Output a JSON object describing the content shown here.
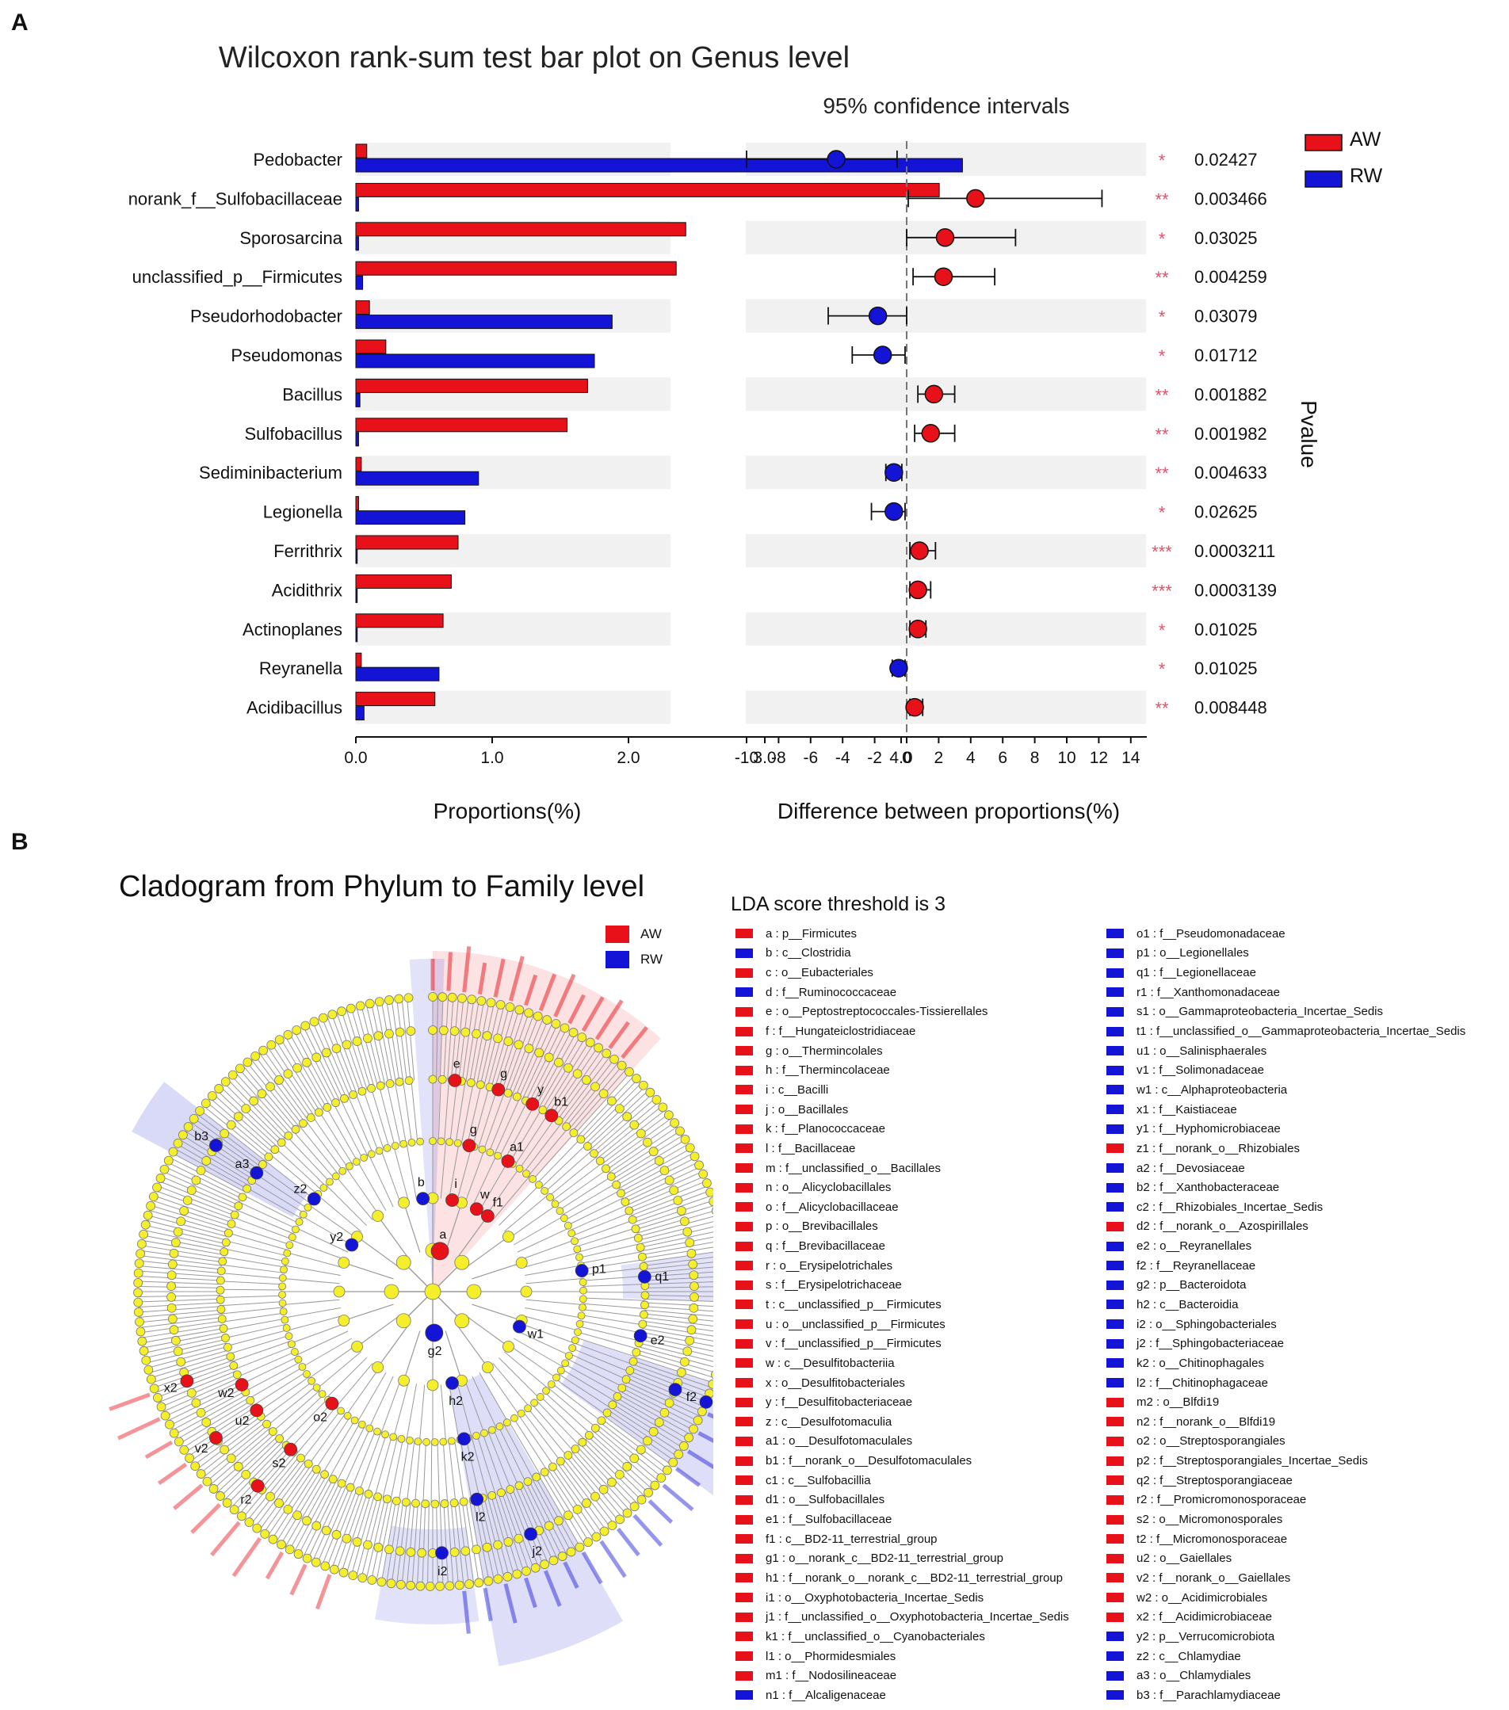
{
  "figure": {
    "panel_a_label": "A",
    "panel_b_label": "B"
  },
  "colors": {
    "AW": "#e8111a",
    "RW": "#1414d6",
    "node": "#f5ef2b",
    "band": "#f1f1f1"
  },
  "chart_data": [
    {
      "type": "bar",
      "orientation": "horizontal",
      "title": "Wilcoxon rank-sum test bar plot on Genus level",
      "xlabel": "Proportions(%)",
      "xlim": [
        0,
        4.5
      ],
      "xticks": [
        0.0,
        1.0,
        2.0,
        3.0,
        4.0
      ],
      "xtick_labels": [
        "0.0",
        "1.0",
        "2.0",
        "3.0",
        "4.0"
      ],
      "categories": [
        "Pedobacter",
        "norank_f__Sulfobacillaceae",
        "Sporosarcina",
        "unclassified_p__Firmicutes",
        "Pseudorhodobacter",
        "Pseudomonas",
        "Bacillus",
        "Sulfobacillus",
        "Sediminibacterium",
        "Legionella",
        "Ferrithrix",
        "Acidithrix",
        "Actinoplanes",
        "Reyranella",
        "Acidibacillus"
      ],
      "series": [
        {
          "name": "AW",
          "values": [
            0.08,
            4.28,
            2.42,
            2.35,
            0.1,
            0.22,
            1.7,
            1.55,
            0.04,
            0.02,
            0.75,
            0.7,
            0.64,
            0.04,
            0.58
          ]
        },
        {
          "name": "RW",
          "values": [
            4.45,
            0.02,
            0.02,
            0.05,
            1.88,
            1.75,
            0.03,
            0.02,
            0.9,
            0.8,
            0.01,
            0.01,
            0.01,
            0.61,
            0.06
          ]
        }
      ],
      "legend": [
        {
          "label": "AW",
          "color": "#e8111a"
        },
        {
          "label": "RW",
          "color": "#1414d6"
        }
      ]
    },
    {
      "type": "errorbar",
      "title": "95% confidence intervals",
      "xlabel": "Difference between proportions(%)",
      "side_label": "Pvalue",
      "xlim": [
        -10,
        15
      ],
      "xticks": [
        -10,
        -8,
        -6,
        -4,
        -2,
        0,
        2,
        4,
        6,
        8,
        10,
        12,
        14
      ],
      "xtick_labels": [
        "-10",
        "-8",
        "-6",
        "-4",
        "-2",
        "0",
        "2",
        "4",
        "6",
        "8",
        "10",
        "12",
        "14"
      ],
      "categories": [
        "Pedobacter",
        "norank_f__Sulfobacillaceae",
        "Sporosarcina",
        "unclassified_p__Firmicutes",
        "Pseudorhodobacter",
        "Pseudomonas",
        "Bacillus",
        "Sulfobacillus",
        "Sediminibacterium",
        "Legionella",
        "Ferrithrix",
        "Acidithrix",
        "Actinoplanes",
        "Reyranella",
        "Acidibacillus"
      ],
      "diff": [
        -4.4,
        4.3,
        2.4,
        2.3,
        -1.8,
        -1.5,
        1.7,
        1.5,
        -0.8,
        -0.8,
        0.8,
        0.7,
        0.7,
        -0.5,
        0.5
      ],
      "ci_low": [
        -10.0,
        0.1,
        0.0,
        0.4,
        -4.9,
        -3.4,
        0.7,
        0.5,
        -1.3,
        -2.2,
        0.2,
        0.2,
        0.2,
        -0.9,
        0.2
      ],
      "ci_high": [
        -0.6,
        12.2,
        6.8,
        5.5,
        0.0,
        -0.1,
        3.0,
        3.0,
        -0.3,
        -0.1,
        1.8,
        1.5,
        1.2,
        -0.1,
        1.0
      ],
      "group": [
        "RW",
        "AW",
        "AW",
        "AW",
        "RW",
        "RW",
        "AW",
        "AW",
        "RW",
        "RW",
        "AW",
        "AW",
        "AW",
        "RW",
        "AW"
      ],
      "significance": [
        "*",
        "**",
        "*",
        "**",
        "*",
        "*",
        "**",
        "**",
        "**",
        "*",
        "***",
        "***",
        "*",
        "*",
        "**"
      ],
      "pvalues": [
        "0.02427",
        "0.003466",
        "0.03025",
        "0.004259",
        "0.03079",
        "0.01712",
        "0.001882",
        "0.001982",
        "0.004633",
        "0.02625",
        "0.0003211",
        "0.0003139",
        "0.01025",
        "0.01025",
        "0.008448"
      ]
    }
  ],
  "cladogram": {
    "title": "Cladogram from Phylum to Family level",
    "legend": [
      {
        "label": "AW",
        "color": "#e8111a"
      },
      {
        "label": "RW",
        "color": "#1414d6"
      }
    ],
    "lda_title": "LDA score threshold is 3",
    "lda_col1": [
      {
        "code": "a",
        "text": "a : p__Firmicutes",
        "group": "AW"
      },
      {
        "code": "b",
        "text": "b : c__Clostridia",
        "group": "RW"
      },
      {
        "code": "c",
        "text": "c : o__Eubacteriales",
        "group": "AW"
      },
      {
        "code": "d",
        "text": "d : f__Ruminococcaceae",
        "group": "RW"
      },
      {
        "code": "e",
        "text": "e : o__Peptostreptococcales-Tissierellales",
        "group": "AW"
      },
      {
        "code": "f",
        "text": "f : f__Hungateiclostridiaceae",
        "group": "AW"
      },
      {
        "code": "g",
        "text": "g : o__Thermincolales",
        "group": "AW"
      },
      {
        "code": "h",
        "text": "h : f__Thermincolaceae",
        "group": "AW"
      },
      {
        "code": "i",
        "text": "i : c__Bacilli",
        "group": "AW"
      },
      {
        "code": "j",
        "text": "j : o__Bacillales",
        "group": "AW"
      },
      {
        "code": "k",
        "text": "k : f__Planococcaceae",
        "group": "AW"
      },
      {
        "code": "l",
        "text": "l : f__Bacillaceae",
        "group": "AW"
      },
      {
        "code": "m",
        "text": "m : f__unclassified_o__Bacillales",
        "group": "AW"
      },
      {
        "code": "n",
        "text": "n : o__Alicyclobacillales",
        "group": "AW"
      },
      {
        "code": "o",
        "text": "o : f__Alicyclobacillaceae",
        "group": "AW"
      },
      {
        "code": "p",
        "text": "p : o__Brevibacillales",
        "group": "AW"
      },
      {
        "code": "q",
        "text": "q : f__Brevibacillaceae",
        "group": "AW"
      },
      {
        "code": "r",
        "text": "r : o__Erysipelotrichales",
        "group": "AW"
      },
      {
        "code": "s",
        "text": "s : f__Erysipelotrichaceae",
        "group": "AW"
      },
      {
        "code": "t",
        "text": "t : c__unclassified_p__Firmicutes",
        "group": "AW"
      },
      {
        "code": "u",
        "text": "u : o__unclassified_p__Firmicutes",
        "group": "AW"
      },
      {
        "code": "v",
        "text": "v : f__unclassified_p__Firmicutes",
        "group": "AW"
      },
      {
        "code": "w",
        "text": "w : c__Desulfitobacteriia",
        "group": "AW"
      },
      {
        "code": "x",
        "text": "x : o__Desulfitobacteriales",
        "group": "AW"
      },
      {
        "code": "y",
        "text": "y : f__Desulfitobacteriaceae",
        "group": "AW"
      },
      {
        "code": "z",
        "text": "z : c__Desulfotomaculia",
        "group": "AW"
      },
      {
        "code": "a1",
        "text": "a1 : o__Desulfotomaculales",
        "group": "AW"
      },
      {
        "code": "b1",
        "text": "b1 : f__norank_o__Desulfotomaculales",
        "group": "AW"
      },
      {
        "code": "c1",
        "text": "c1 : c__Sulfobacillia",
        "group": "AW"
      },
      {
        "code": "d1",
        "text": "d1 : o__Sulfobacillales",
        "group": "AW"
      },
      {
        "code": "e1",
        "text": "e1 : f__Sulfobacillaceae",
        "group": "AW"
      },
      {
        "code": "f1",
        "text": "f1 : c__BD2-11_terrestrial_group",
        "group": "AW"
      },
      {
        "code": "g1",
        "text": "g1 : o__norank_c__BD2-11_terrestrial_group",
        "group": "AW"
      },
      {
        "code": "h1",
        "text": "h1 : f__norank_o__norank_c__BD2-11_terrestrial_group",
        "group": "AW"
      },
      {
        "code": "i1",
        "text": "i1 : o__Oxyphotobacteria_Incertae_Sedis",
        "group": "AW"
      },
      {
        "code": "j1",
        "text": "j1 : f__unclassified_o__Oxyphotobacteria_Incertae_Sedis",
        "group": "AW"
      },
      {
        "code": "k1",
        "text": "k1 : f__unclassified_o__Cyanobacteriales",
        "group": "AW"
      },
      {
        "code": "l1",
        "text": "l1 : o__Phormidesmiales",
        "group": "AW"
      },
      {
        "code": "m1",
        "text": "m1 : f__Nodosilineaceae",
        "group": "AW"
      },
      {
        "code": "n1",
        "text": "n1 : f__Alcaligenaceae",
        "group": "RW"
      }
    ],
    "lda_col2": [
      {
        "code": "o1",
        "text": "o1 : f__Pseudomonadaceae",
        "group": "RW"
      },
      {
        "code": "p1",
        "text": "p1 : o__Legionellales",
        "group": "RW"
      },
      {
        "code": "q1",
        "text": "q1 : f__Legionellaceae",
        "group": "RW"
      },
      {
        "code": "r1",
        "text": "r1 : f__Xanthomonadaceae",
        "group": "RW"
      },
      {
        "code": "s1",
        "text": "s1 : o__Gammaproteobacteria_Incertae_Sedis",
        "group": "RW"
      },
      {
        "code": "t1",
        "text": "t1 : f__unclassified_o__Gammaproteobacteria_Incertae_Sedis",
        "group": "RW"
      },
      {
        "code": "u1",
        "text": "u1 : o__Salinisphaerales",
        "group": "RW"
      },
      {
        "code": "v1",
        "text": "v1 : f__Solimonadaceae",
        "group": "RW"
      },
      {
        "code": "w1",
        "text": "w1 : c__Alphaproteobacteria",
        "group": "RW"
      },
      {
        "code": "x1",
        "text": "x1 : f__Kaistiaceae",
        "group": "RW"
      },
      {
        "code": "y1",
        "text": "y1 : f__Hyphomicrobiaceae",
        "group": "RW"
      },
      {
        "code": "z1",
        "text": "z1 : f__norank_o__Rhizobiales",
        "group": "AW"
      },
      {
        "code": "a2",
        "text": "a2 : f__Devosiaceae",
        "group": "RW"
      },
      {
        "code": "b2",
        "text": "b2 : f__Xanthobacteraceae",
        "group": "RW"
      },
      {
        "code": "c2",
        "text": "c2 : f__Rhizobiales_Incertae_Sedis",
        "group": "RW"
      },
      {
        "code": "d2",
        "text": "d2 : f__norank_o__Azospirillales",
        "group": "AW"
      },
      {
        "code": "e2",
        "text": "e2 : o__Reyranellales",
        "group": "RW"
      },
      {
        "code": "f2",
        "text": "f2 : f__Reyranellaceae",
        "group": "RW"
      },
      {
        "code": "g2",
        "text": "g2 : p__Bacteroidota",
        "group": "RW"
      },
      {
        "code": "h2",
        "text": "h2 : c__Bacteroidia",
        "group": "RW"
      },
      {
        "code": "i2",
        "text": "i2 : o__Sphingobacteriales",
        "group": "RW"
      },
      {
        "code": "j2",
        "text": "j2 : f__Sphingobacteriaceae",
        "group": "RW"
      },
      {
        "code": "k2",
        "text": "k2 : o__Chitinophagales",
        "group": "RW"
      },
      {
        "code": "l2",
        "text": "l2 : f__Chitinophagaceae",
        "group": "RW"
      },
      {
        "code": "m2",
        "text": "m2 : o__Blfdi19",
        "group": "AW"
      },
      {
        "code": "n2",
        "text": "n2 : f__norank_o__Blfdi19",
        "group": "AW"
      },
      {
        "code": "o2",
        "text": "o2 : o__Streptosporangiales",
        "group": "AW"
      },
      {
        "code": "p2",
        "text": "p2 : f__Streptosporangiales_Incertae_Sedis",
        "group": "AW"
      },
      {
        "code": "q2",
        "text": "q2 : f__Streptosporangiaceae",
        "group": "AW"
      },
      {
        "code": "r2",
        "text": "r2 : f__Promicromonosporaceae",
        "group": "AW"
      },
      {
        "code": "s2",
        "text": "s2 : o__Micromonosporales",
        "group": "AW"
      },
      {
        "code": "t2",
        "text": "t2 : f__Micromonosporaceae",
        "group": "AW"
      },
      {
        "code": "u2",
        "text": "u2 : o__Gaiellales",
        "group": "AW"
      },
      {
        "code": "v2",
        "text": "v2 : f__norank_o__Gaiellales",
        "group": "AW"
      },
      {
        "code": "w2",
        "text": "w2 : o__Acidimicrobiales",
        "group": "AW"
      },
      {
        "code": "x2",
        "text": "x2 : f__Acidimicrobiaceae",
        "group": "AW"
      },
      {
        "code": "y2",
        "text": "y2 : p__Verrucomicrobiota",
        "group": "RW"
      },
      {
        "code": "z2",
        "text": "z2 : c__Chlamydiae",
        "group": "RW"
      },
      {
        "code": "a3",
        "text": "a3 : o__Chlamydiales",
        "group": "RW"
      },
      {
        "code": "b3",
        "text": "b3 : f__Parachlamydiaceae",
        "group": "RW"
      }
    ]
  }
}
